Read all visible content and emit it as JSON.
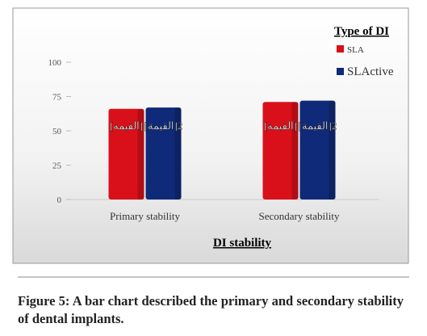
{
  "chart_data": {
    "type": "bar",
    "legend_title": "Type of DI",
    "x_label": "DI stability",
    "categories": [
      "Primary stability",
      "Secondary stability"
    ],
    "series": [
      {
        "name": "SLA",
        "color": "#d9101a",
        "values": [
          66,
          71
        ],
        "data_labels": [
          "[القيمة]",
          "[القيمة]"
        ]
      },
      {
        "name": "SLActive",
        "color": "#0f2a78",
        "values": [
          67,
          72
        ],
        "data_labels": [
          "[القيمة]2",
          "[القيمة]2"
        ]
      }
    ],
    "ylim": [
      0,
      100
    ],
    "yticks": [
      0,
      25,
      50,
      75,
      100
    ],
    "grid": false,
    "legend": "upper right"
  },
  "caption": "Figure 5: A bar chart described the primary and secondary stability of dental implants."
}
